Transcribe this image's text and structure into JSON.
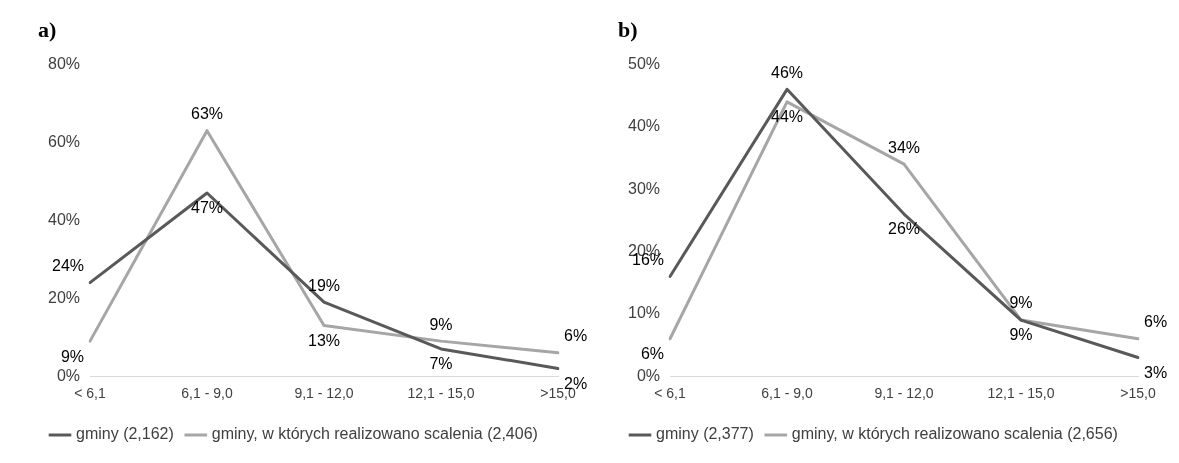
{
  "chart_data": [
    {
      "type": "line",
      "title": "a)",
      "categories": [
        "< 6,1",
        "6,1 - 9,0",
        "9,1 - 12,0",
        "12,1 - 15,0",
        ">15,0"
      ],
      "series": [
        {
          "name": "gminy (2,162)",
          "color": "#595959",
          "values": [
            24,
            47,
            19,
            7,
            2
          ],
          "value_labels": [
            "24%",
            "47%",
            "19%",
            "7%",
            "2%"
          ]
        },
        {
          "name": "gminy, w których realizowano scalenia (2,406)",
          "color": "#a6a6a6",
          "values": [
            9,
            63,
            13,
            9,
            6
          ],
          "value_labels": [
            "9%",
            "63%",
            "13%",
            "9%",
            "6%"
          ]
        }
      ],
      "ylim": [
        0,
        80
      ],
      "yticks": [
        {
          "value": 0,
          "label": "0%"
        },
        {
          "value": 20,
          "label": "20%"
        },
        {
          "value": 40,
          "label": "40%"
        },
        {
          "value": 60,
          "label": "60%"
        },
        {
          "value": 80,
          "label": "80%"
        }
      ],
      "grid": false,
      "legend": "bottom left",
      "marker": "none",
      "line_style": "solid"
    },
    {
      "type": "line",
      "title": "b)",
      "categories": [
        "< 6,1",
        "6,1 - 9,0",
        "9,1 - 12,0",
        "12,1 - 15,0",
        ">15,0"
      ],
      "series": [
        {
          "name": "gminy (2,377)",
          "color": "#595959",
          "values": [
            16,
            46,
            26,
            9,
            3
          ],
          "value_labels": [
            "16%",
            "46%",
            "26%",
            "9%",
            "3%"
          ]
        },
        {
          "name": "gminy, w których realizowano scalenia (2,656)",
          "color": "#a6a6a6",
          "values": [
            6,
            44,
            34,
            9,
            6
          ],
          "value_labels": [
            "6%",
            "44%",
            "34%",
            "9%",
            "6%"
          ]
        }
      ],
      "ylim": [
        0,
        50
      ],
      "yticks": [
        {
          "value": 0,
          "label": "0%"
        },
        {
          "value": 10,
          "label": "10%"
        },
        {
          "value": 20,
          "label": "20%"
        },
        {
          "value": 30,
          "label": "30%"
        },
        {
          "value": 40,
          "label": "40%"
        },
        {
          "value": 50,
          "label": "50%"
        }
      ],
      "grid": false,
      "legend": "bottom left",
      "marker": "none",
      "line_style": "solid"
    }
  ]
}
